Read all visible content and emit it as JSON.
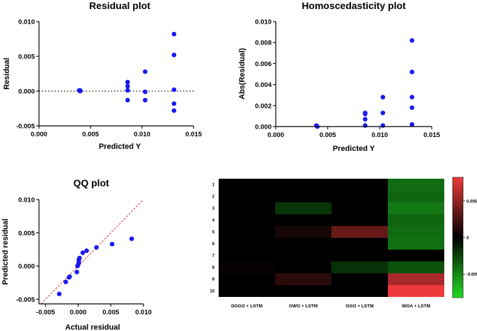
{
  "chart_data": [
    {
      "id": "residual",
      "type": "scatter",
      "title": "Residual plot",
      "xlabel": "Predicted Y",
      "ylabel": "Residual",
      "xlim": [
        0.0,
        0.015
      ],
      "ylim": [
        -0.005,
        0.01
      ],
      "xticks": [
        "0.000",
        "0.005",
        "0.010",
        "0.015"
      ],
      "yticks": [
        "-0.005",
        "0.000",
        "0.005",
        "0.010"
      ],
      "reference_line": {
        "y": 0,
        "style": "dotted",
        "color": "#000000"
      },
      "points": [
        {
          "x": 0.0039,
          "y": 0.0001
        },
        {
          "x": 0.004,
          "y": 0.0
        },
        {
          "x": 0.004,
          "y": 0.0001
        },
        {
          "x": 0.0086,
          "y": 0.0013
        },
        {
          "x": 0.0086,
          "y": 0.0007
        },
        {
          "x": 0.0086,
          "y": 0.0001
        },
        {
          "x": 0.0086,
          "y": -0.0013
        },
        {
          "x": 0.0103,
          "y": 0.0028
        },
        {
          "x": 0.0103,
          "y": -0.0001
        },
        {
          "x": 0.0103,
          "y": -0.0013
        },
        {
          "x": 0.0131,
          "y": 0.0082
        },
        {
          "x": 0.0131,
          "y": 0.0052
        },
        {
          "x": 0.0131,
          "y": 0.0002
        },
        {
          "x": 0.0131,
          "y": -0.0018
        },
        {
          "x": 0.0131,
          "y": -0.0028
        }
      ],
      "point_color": "#1a1aee"
    },
    {
      "id": "homosced",
      "type": "scatter",
      "title": "Homoscedasticity plot",
      "xlabel": "Predicted Y",
      "ylabel": "Abs(Residual)",
      "xlim": [
        0.0,
        0.015
      ],
      "ylim": [
        0.0,
        0.01
      ],
      "xticks": [
        "0.000",
        "0.005",
        "0.010",
        "0.015"
      ],
      "yticks": [
        "0.000",
        "0.002",
        "0.004",
        "0.006",
        "0.008",
        "0.010"
      ],
      "points": [
        {
          "x": 0.0039,
          "y": 0.0001
        },
        {
          "x": 0.004,
          "y": 0.0
        },
        {
          "x": 0.0086,
          "y": 0.0013
        },
        {
          "x": 0.0086,
          "y": 0.0012
        },
        {
          "x": 0.0086,
          "y": 0.0007
        },
        {
          "x": 0.0086,
          "y": 0.0001
        },
        {
          "x": 0.0103,
          "y": 0.0028
        },
        {
          "x": 0.0103,
          "y": 0.0013
        },
        {
          "x": 0.0103,
          "y": 0.0001
        },
        {
          "x": 0.0131,
          "y": 0.0082
        },
        {
          "x": 0.0131,
          "y": 0.0052
        },
        {
          "x": 0.0131,
          "y": 0.0028
        },
        {
          "x": 0.0131,
          "y": 0.0018
        },
        {
          "x": 0.0131,
          "y": 0.0002
        }
      ],
      "point_color": "#1a1aee"
    },
    {
      "id": "qq",
      "type": "scatter",
      "title": "QQ plot",
      "xlabel": "Actual residual",
      "ylabel": "Predicted residual",
      "xlim": [
        -0.006,
        0.01
      ],
      "ylim": [
        -0.0057,
        0.01
      ],
      "xticks": [
        "-0.005",
        "0.000",
        "0.005",
        "0.010"
      ],
      "yticks": [
        "-0.005",
        "0.000",
        "0.005",
        "0.010"
      ],
      "reference_line": {
        "type": "identity",
        "style": "dashed",
        "color": "#dd2222"
      },
      "points": [
        {
          "x": -0.0029,
          "y": -0.0042
        },
        {
          "x": -0.0019,
          "y": -0.0024
        },
        {
          "x": -0.0014,
          "y": -0.0017
        },
        {
          "x": -0.0013,
          "y": -0.0016
        },
        {
          "x": -0.0002,
          "y": -0.0009
        },
        {
          "x": -0.0001,
          "y": 0.0
        },
        {
          "x": 0.0,
          "y": 0.0002
        },
        {
          "x": 0.0001,
          "y": 0.0005
        },
        {
          "x": 0.0001,
          "y": 0.0009
        },
        {
          "x": 0.0002,
          "y": 0.0012
        },
        {
          "x": 0.0007,
          "y": 0.002
        },
        {
          "x": 0.0013,
          "y": 0.0023
        },
        {
          "x": 0.0028,
          "y": 0.0028
        },
        {
          "x": 0.0052,
          "y": 0.0033
        },
        {
          "x": 0.0082,
          "y": 0.0041
        }
      ],
      "point_color": "#1a1aee"
    },
    {
      "id": "heatmap",
      "type": "heatmap",
      "title": "",
      "columns": [
        "DGGO + LSTM",
        "GWO + LSTM",
        "GGO + LSTM",
        "WOA + LSTM"
      ],
      "rows": [
        "1",
        "2",
        "3",
        "4",
        "5",
        "6",
        "7",
        "8",
        "9",
        "10"
      ],
      "values": [
        [
          0.0,
          0.0,
          0.0,
          -0.004
        ],
        [
          0.0,
          0.0,
          0.0,
          -0.0038
        ],
        [
          0.0,
          -0.002,
          0.0,
          -0.0045
        ],
        [
          0.0,
          0.0,
          0.0,
          -0.0038
        ],
        [
          0.0,
          0.0008,
          0.0035,
          -0.004
        ],
        [
          0.0,
          0.0,
          0.0,
          -0.0042
        ],
        [
          0.0,
          0.0,
          0.0,
          0.0
        ],
        [
          0.0003,
          0.0,
          -0.0018,
          -0.003
        ],
        [
          0.0,
          0.0015,
          0.0,
          0.0058
        ],
        [
          0.0,
          0.0,
          0.0,
          0.0082
        ]
      ],
      "colorbar": {
        "min": -0.0082,
        "max": 0.0082,
        "ticks": [
          "0.005",
          "0",
          "-0.005"
        ],
        "tick_values": [
          0.005,
          0,
          -0.005
        ],
        "colors": {
          "low": "#22dd22",
          "mid": "#000000",
          "high": "#ee3a3a"
        }
      }
    }
  ]
}
